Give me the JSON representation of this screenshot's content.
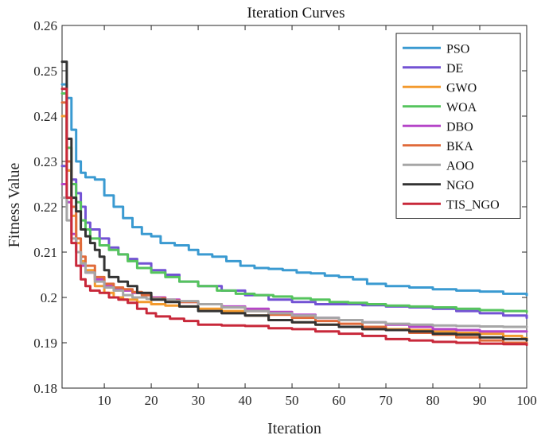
{
  "chart_data": {
    "type": "line",
    "title": "Iteration Curves",
    "xlabel": "Iteration",
    "ylabel": "Fitness Value",
    "xlim": [
      1,
      100
    ],
    "ylim": [
      0.18,
      0.26
    ],
    "xticks": [
      10,
      20,
      30,
      40,
      50,
      60,
      70,
      80,
      90,
      100
    ],
    "yticks": [
      0.18,
      0.19,
      0.2,
      0.21,
      0.22,
      0.23,
      0.24,
      0.25,
      0.26
    ],
    "ytick_labels": [
      "0.18",
      "0.19",
      "0.2",
      "0.21",
      "0.22",
      "0.23",
      "0.24",
      "0.25",
      "0.26"
    ],
    "grid": false,
    "legend_position": "top-right",
    "series": [
      {
        "name": "PSO",
        "color": "#3a9ad1",
        "points": [
          [
            1,
            0.247
          ],
          [
            2,
            0.244
          ],
          [
            3,
            0.237
          ],
          [
            4,
            0.23
          ],
          [
            5,
            0.2275
          ],
          [
            6,
            0.2265
          ],
          [
            8,
            0.226
          ],
          [
            10,
            0.2225
          ],
          [
            12,
            0.22
          ],
          [
            14,
            0.2175
          ],
          [
            16,
            0.2155
          ],
          [
            18,
            0.214
          ],
          [
            20,
            0.2135
          ],
          [
            22,
            0.212
          ],
          [
            25,
            0.2115
          ],
          [
            28,
            0.2105
          ],
          [
            30,
            0.2095
          ],
          [
            33,
            0.209
          ],
          [
            36,
            0.208
          ],
          [
            39,
            0.207
          ],
          [
            42,
            0.2065
          ],
          [
            45,
            0.2063
          ],
          [
            48,
            0.206
          ],
          [
            51,
            0.2055
          ],
          [
            54,
            0.2053
          ],
          [
            57,
            0.2048
          ],
          [
            60,
            0.2045
          ],
          [
            63,
            0.204
          ],
          [
            66,
            0.203
          ],
          [
            70,
            0.2025
          ],
          [
            75,
            0.2022
          ],
          [
            80,
            0.2018
          ],
          [
            85,
            0.2015
          ],
          [
            90,
            0.2013
          ],
          [
            95,
            0.2008
          ],
          [
            100,
            0.2005
          ]
        ]
      },
      {
        "name": "DE",
        "color": "#7352d4",
        "points": [
          [
            1,
            0.229
          ],
          [
            2,
            0.228
          ],
          [
            3,
            0.226
          ],
          [
            4,
            0.223
          ],
          [
            5,
            0.22
          ],
          [
            6,
            0.2165
          ],
          [
            7,
            0.215
          ],
          [
            9,
            0.213
          ],
          [
            11,
            0.211
          ],
          [
            13,
            0.2095
          ],
          [
            15,
            0.2085
          ],
          [
            17,
            0.2075
          ],
          [
            20,
            0.206
          ],
          [
            23,
            0.205
          ],
          [
            26,
            0.2035
          ],
          [
            30,
            0.2025
          ],
          [
            35,
            0.2015
          ],
          [
            40,
            0.2005
          ],
          [
            45,
            0.1995
          ],
          [
            50,
            0.199
          ],
          [
            55,
            0.1985
          ],
          [
            60,
            0.1985
          ],
          [
            65,
            0.1983
          ],
          [
            70,
            0.198
          ],
          [
            75,
            0.1978
          ],
          [
            80,
            0.1975
          ],
          [
            85,
            0.197
          ],
          [
            90,
            0.1965
          ],
          [
            95,
            0.196
          ],
          [
            100,
            0.1955
          ]
        ]
      },
      {
        "name": "GWO",
        "color": "#f39a2e",
        "points": [
          [
            1,
            0.24
          ],
          [
            2,
            0.228
          ],
          [
            3,
            0.218
          ],
          [
            4,
            0.212
          ],
          [
            5,
            0.208
          ],
          [
            6,
            0.206
          ],
          [
            8,
            0.2025
          ],
          [
            10,
            0.201
          ],
          [
            12,
            0.2
          ],
          [
            14,
            0.1995
          ],
          [
            17,
            0.199
          ],
          [
            20,
            0.1985
          ],
          [
            23,
            0.1982
          ],
          [
            26,
            0.198
          ],
          [
            30,
            0.1975
          ],
          [
            35,
            0.197
          ],
          [
            40,
            0.196
          ],
          [
            45,
            0.195
          ],
          [
            50,
            0.1945
          ],
          [
            55,
            0.194
          ],
          [
            60,
            0.1935
          ],
          [
            65,
            0.193
          ],
          [
            70,
            0.193
          ],
          [
            75,
            0.1928
          ],
          [
            80,
            0.1925
          ],
          [
            85,
            0.1922
          ],
          [
            90,
            0.192
          ],
          [
            95,
            0.1915
          ],
          [
            98,
            0.1915
          ],
          [
            99,
            0.191
          ],
          [
            100,
            0.1905
          ]
        ]
      },
      {
        "name": "WOA",
        "color": "#55c45d",
        "points": [
          [
            1,
            0.245
          ],
          [
            2,
            0.233
          ],
          [
            3,
            0.225
          ],
          [
            4,
            0.221
          ],
          [
            5,
            0.217
          ],
          [
            6,
            0.215
          ],
          [
            7,
            0.213
          ],
          [
            9,
            0.2115
          ],
          [
            11,
            0.2105
          ],
          [
            13,
            0.2095
          ],
          [
            15,
            0.208
          ],
          [
            17,
            0.2065
          ],
          [
            20,
            0.2055
          ],
          [
            23,
            0.2045
          ],
          [
            26,
            0.2035
          ],
          [
            30,
            0.2025
          ],
          [
            34,
            0.2015
          ],
          [
            38,
            0.2008
          ],
          [
            42,
            0.2005
          ],
          [
            46,
            0.2002
          ],
          [
            50,
            0.1998
          ],
          [
            54,
            0.1995
          ],
          [
            58,
            0.199
          ],
          [
            62,
            0.1988
          ],
          [
            66,
            0.1985
          ],
          [
            70,
            0.1982
          ],
          [
            75,
            0.198
          ],
          [
            80,
            0.1978
          ],
          [
            85,
            0.1975
          ],
          [
            90,
            0.1972
          ],
          [
            95,
            0.197
          ],
          [
            100,
            0.1968
          ]
        ]
      },
      {
        "name": "DBO",
        "color": "#b545c8",
        "points": [
          [
            1,
            0.225
          ],
          [
            2,
            0.221
          ],
          [
            3,
            0.214
          ],
          [
            4,
            0.21
          ],
          [
            5,
            0.207
          ],
          [
            6,
            0.2055
          ],
          [
            8,
            0.204
          ],
          [
            10,
            0.2025
          ],
          [
            12,
            0.202
          ],
          [
            14,
            0.2015
          ],
          [
            16,
            0.201
          ],
          [
            18,
            0.2005
          ],
          [
            20,
            0.2
          ],
          [
            23,
            0.1995
          ],
          [
            26,
            0.199
          ],
          [
            30,
            0.1985
          ],
          [
            35,
            0.198
          ],
          [
            40,
            0.1975
          ],
          [
            45,
            0.1968
          ],
          [
            50,
            0.1962
          ],
          [
            55,
            0.1955
          ],
          [
            60,
            0.195
          ],
          [
            65,
            0.1945
          ],
          [
            70,
            0.194
          ],
          [
            75,
            0.1935
          ],
          [
            80,
            0.193
          ],
          [
            85,
            0.1928
          ],
          [
            90,
            0.1925
          ],
          [
            95,
            0.1925
          ],
          [
            100,
            0.1925
          ]
        ]
      },
      {
        "name": "BKA",
        "color": "#e06a3a",
        "points": [
          [
            1,
            0.243
          ],
          [
            2,
            0.23
          ],
          [
            3,
            0.22
          ],
          [
            4,
            0.213
          ],
          [
            5,
            0.209
          ],
          [
            6,
            0.207
          ],
          [
            8,
            0.2045
          ],
          [
            10,
            0.203
          ],
          [
            12,
            0.2022
          ],
          [
            14,
            0.2018
          ],
          [
            16,
            0.2012
          ],
          [
            18,
            0.2005
          ],
          [
            20,
            0.1998
          ],
          [
            23,
            0.1993
          ],
          [
            26,
            0.199
          ],
          [
            30,
            0.1985
          ],
          [
            35,
            0.1978
          ],
          [
            40,
            0.197
          ],
          [
            45,
            0.1962
          ],
          [
            50,
            0.1955
          ],
          [
            55,
            0.1948
          ],
          [
            60,
            0.1942
          ],
          [
            65,
            0.1935
          ],
          [
            70,
            0.1928
          ],
          [
            75,
            0.1922
          ],
          [
            80,
            0.1918
          ],
          [
            85,
            0.1912
          ],
          [
            90,
            0.1905
          ],
          [
            95,
            0.19
          ],
          [
            100,
            0.1898
          ]
        ]
      },
      {
        "name": "AOO",
        "color": "#a6a6a6",
        "points": [
          [
            1,
            0.222
          ],
          [
            2,
            0.217
          ],
          [
            3,
            0.213
          ],
          [
            4,
            0.21
          ],
          [
            5,
            0.2075
          ],
          [
            6,
            0.2055
          ],
          [
            8,
            0.2035
          ],
          [
            10,
            0.2022
          ],
          [
            12,
            0.2015
          ],
          [
            14,
            0.2005
          ],
          [
            16,
            0.2
          ],
          [
            19,
            0.1997
          ],
          [
            22,
            0.1995
          ],
          [
            25,
            0.1992
          ],
          [
            30,
            0.1985
          ],
          [
            35,
            0.1978
          ],
          [
            40,
            0.197
          ],
          [
            45,
            0.1965
          ],
          [
            50,
            0.196
          ],
          [
            55,
            0.1955
          ],
          [
            60,
            0.195
          ],
          [
            65,
            0.1945
          ],
          [
            70,
            0.1942
          ],
          [
            75,
            0.194
          ],
          [
            80,
            0.1938
          ],
          [
            85,
            0.1937
          ],
          [
            90,
            0.1936
          ],
          [
            95,
            0.1935
          ],
          [
            100,
            0.1935
          ]
        ]
      },
      {
        "name": "NGO",
        "color": "#333333",
        "points": [
          [
            1,
            0.252
          ],
          [
            2,
            0.235
          ],
          [
            3,
            0.222
          ],
          [
            4,
            0.219
          ],
          [
            5,
            0.215
          ],
          [
            6,
            0.2135
          ],
          [
            7,
            0.212
          ],
          [
            8,
            0.2105
          ],
          [
            9,
            0.209
          ],
          [
            10,
            0.206
          ],
          [
            11,
            0.2045
          ],
          [
            13,
            0.2035
          ],
          [
            15,
            0.2025
          ],
          [
            17,
            0.201
          ],
          [
            20,
            0.1995
          ],
          [
            23,
            0.199
          ],
          [
            26,
            0.198
          ],
          [
            30,
            0.197
          ],
          [
            35,
            0.1965
          ],
          [
            40,
            0.196
          ],
          [
            45,
            0.195
          ],
          [
            50,
            0.1945
          ],
          [
            55,
            0.194
          ],
          [
            60,
            0.1935
          ],
          [
            65,
            0.193
          ],
          [
            70,
            0.1928
          ],
          [
            75,
            0.1925
          ],
          [
            80,
            0.192
          ],
          [
            85,
            0.1918
          ],
          [
            90,
            0.1912
          ],
          [
            95,
            0.1908
          ],
          [
            100,
            0.1905
          ]
        ]
      },
      {
        "name": "TIS_NGO",
        "color": "#c8283a",
        "points": [
          [
            1,
            0.246
          ],
          [
            2,
            0.222
          ],
          [
            3,
            0.212
          ],
          [
            4,
            0.207
          ],
          [
            5,
            0.204
          ],
          [
            6,
            0.2025
          ],
          [
            7,
            0.2015
          ],
          [
            9,
            0.201
          ],
          [
            11,
            0.2
          ],
          [
            13,
            0.1995
          ],
          [
            15,
            0.1988
          ],
          [
            17,
            0.1975
          ],
          [
            19,
            0.1965
          ],
          [
            21,
            0.1958
          ],
          [
            24,
            0.1953
          ],
          [
            27,
            0.1948
          ],
          [
            30,
            0.194
          ],
          [
            35,
            0.1938
          ],
          [
            40,
            0.1937
          ],
          [
            45,
            0.1932
          ],
          [
            50,
            0.193
          ],
          [
            55,
            0.1925
          ],
          [
            60,
            0.192
          ],
          [
            65,
            0.1915
          ],
          [
            70,
            0.1908
          ],
          [
            75,
            0.1905
          ],
          [
            80,
            0.1902
          ],
          [
            85,
            0.19
          ],
          [
            90,
            0.1898
          ],
          [
            95,
            0.1897
          ],
          [
            100,
            0.1895
          ]
        ]
      }
    ]
  }
}
